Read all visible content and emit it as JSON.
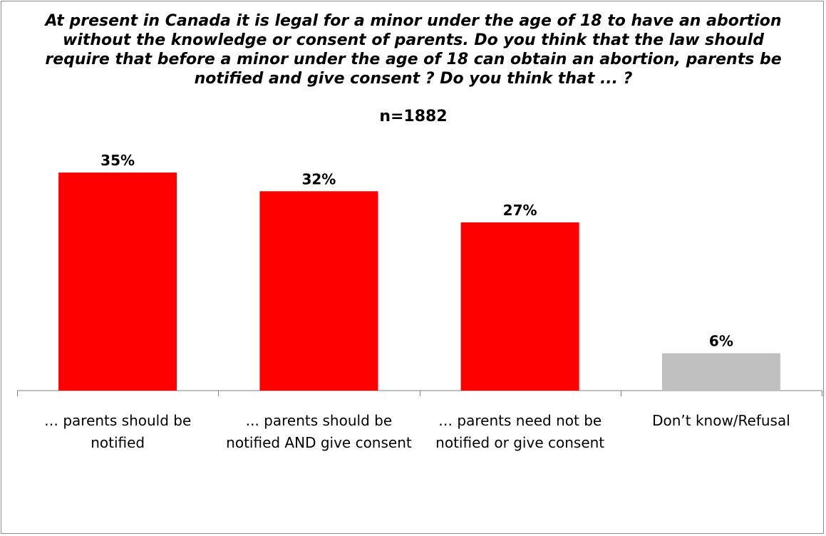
{
  "chart_data": {
    "type": "bar",
    "title": "At present in Canada it is legal for a minor under the age of 18 to have an abortion without the knowledge or consent of parents. Do you think that the law should require that before a minor under the age of 18 can obtain an abortion, parents be notified and give consent ? Do you think that ... ?",
    "subtitle": "n=1882",
    "categories": [
      "… parents should be notified",
      "... parents should be notified AND give consent",
      "… parents need not be notified or give consent",
      "Don’t know/Refusal"
    ],
    "values": [
      35,
      32,
      27,
      6
    ],
    "data_labels": [
      "35%",
      "32%",
      "27%",
      "6%"
    ],
    "bar_colors": [
      "#ff0000",
      "#ff0000",
      "#ff0000",
      "#c0c0c0"
    ],
    "unit": "%",
    "xlabel": "",
    "ylabel": "",
    "ylim": [
      0,
      40
    ],
    "grid": false,
    "legend": "none"
  }
}
